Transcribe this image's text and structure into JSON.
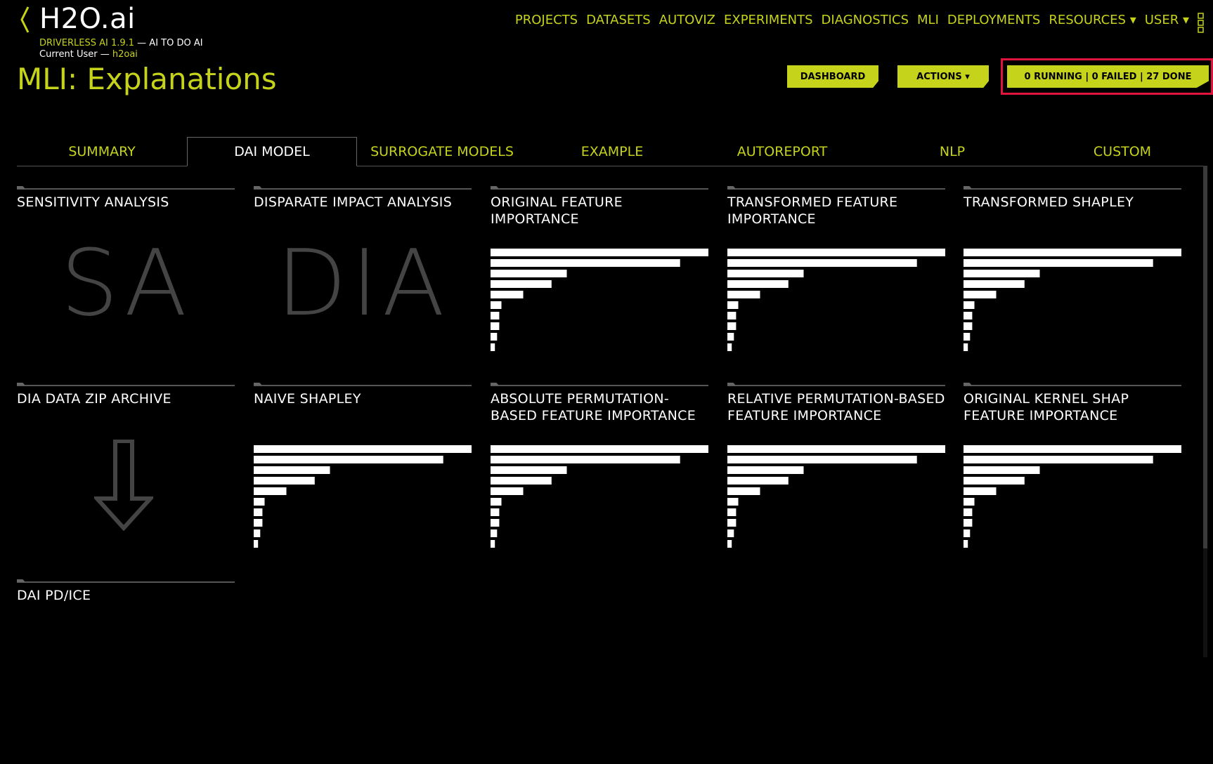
{
  "header": {
    "brand": "H2O.ai",
    "product_version": "DRIVERLESS AI 1.9.1",
    "tagline": " — AI TO DO AI",
    "current_user_label": "Current User — ",
    "current_user": "h2oai",
    "page_title": "MLI: Explanations"
  },
  "nav": {
    "items": [
      "PROJECTS",
      "DATASETS",
      "AUTOVIZ",
      "EXPERIMENTS",
      "DIAGNOSTICS",
      "MLI",
      "DEPLOYMENTS",
      "RESOURCES ▾",
      "USER ▾"
    ]
  },
  "toolbar": {
    "dashboard_label": "DASHBOARD",
    "actions_label": "ACTIONS ▾",
    "status_label": "0 RUNNING | 0 FAILED | 27 DONE"
  },
  "tabs": [
    "SUMMARY",
    "DAI MODEL",
    "SURROGATE MODELS",
    "EXAMPLE",
    "AUTOREPORT",
    "NLP",
    "CUSTOM"
  ],
  "active_tab": "DAI MODEL",
  "cards": [
    {
      "title": "SENSITIVITY ANALYSIS",
      "kind": "letters",
      "letters": "SA"
    },
    {
      "title": "DISPARATE IMPACT ANALYSIS",
      "kind": "letters",
      "letters": "DIA"
    },
    {
      "title": "ORIGINAL FEATURE IMPORTANCE",
      "kind": "bars"
    },
    {
      "title": "TRANSFORMED FEATURE IMPORTANCE",
      "kind": "bars"
    },
    {
      "title": "TRANSFORMED SHAPLEY",
      "kind": "bars"
    },
    {
      "title": "DIA DATA ZIP ARCHIVE",
      "kind": "download",
      "icon": "download-arrow-icon"
    },
    {
      "title": "NAIVE SHAPLEY",
      "kind": "bars"
    },
    {
      "title": "ABSOLUTE PERMUTATION-BASED FEATURE IMPORTANCE",
      "kind": "bars"
    },
    {
      "title": "RELATIVE PERMUTATION-BASED FEATURE IMPORTANCE",
      "kind": "bars"
    },
    {
      "title": "ORIGINAL KERNEL SHAP FEATURE IMPORTANCE",
      "kind": "bars"
    },
    {
      "title": "DAI PD/ICE",
      "kind": "empty"
    }
  ],
  "thumbnail_bar_fractions": [
    1.0,
    0.87,
    0.35,
    0.28,
    0.15,
    0.05,
    0.04,
    0.04,
    0.03,
    0.02
  ],
  "colors": {
    "accent": "#c6d31b",
    "background": "#000000",
    "highlight_outline": "#e0143c"
  }
}
